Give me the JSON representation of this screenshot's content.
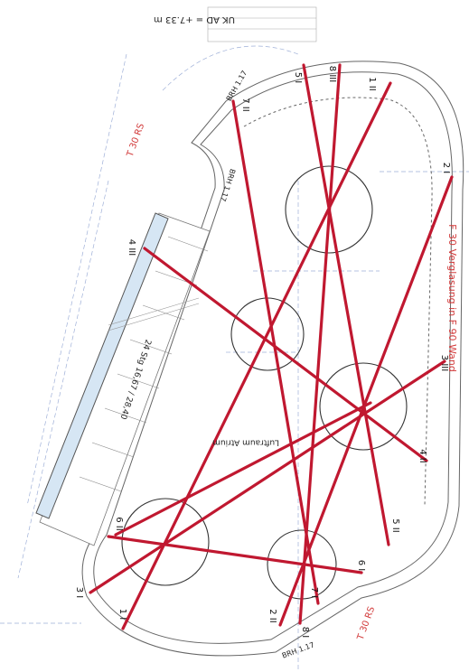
{
  "header": {
    "level": "UK AD = +7.33 m"
  },
  "notes": {
    "glazing": "F 30 Verglasung in F 90 Wand",
    "atrium": "Luftraum Atrium",
    "stair": "24 Stg 16,67 / 28,40",
    "door": "T 30 RS",
    "door2": "T 30 RS",
    "brh_top": "BRH 1.17",
    "brh_bottom": "BRH 1.17",
    "brh_left": "BRH 1.17"
  },
  "labels": [
    "8 III",
    "5 I",
    "1 II",
    "7 II",
    "2 I",
    "4 III",
    "3 III",
    "4 II",
    "5 II",
    "6 II",
    "6 I",
    "7 I",
    "2 II",
    "8 I",
    "1 I",
    "3 I"
  ]
}
